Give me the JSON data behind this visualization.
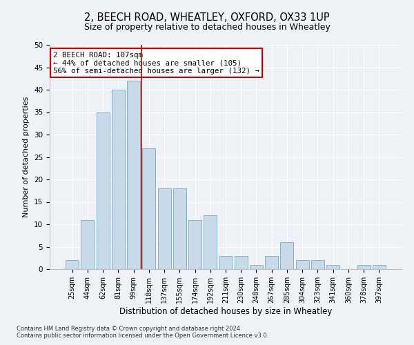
{
  "title_line1": "2, BEECH ROAD, WHEATLEY, OXFORD, OX33 1UP",
  "title_line2": "Size of property relative to detached houses in Wheatley",
  "xlabel": "Distribution of detached houses by size in Wheatley",
  "ylabel": "Number of detached properties",
  "bar_color": "#c8daea",
  "bar_edge_color": "#7aaabf",
  "categories": [
    "25sqm",
    "44sqm",
    "62sqm",
    "81sqm",
    "99sqm",
    "118sqm",
    "137sqm",
    "155sqm",
    "174sqm",
    "192sqm",
    "211sqm",
    "230sqm",
    "248sqm",
    "267sqm",
    "285sqm",
    "304sqm",
    "323sqm",
    "341sqm",
    "360sqm",
    "378sqm",
    "397sqm"
  ],
  "values": [
    2,
    11,
    35,
    40,
    42,
    27,
    18,
    18,
    11,
    12,
    3,
    3,
    1,
    3,
    6,
    2,
    2,
    1,
    0,
    1,
    1
  ],
  "vline_x": 4.5,
  "vline_color": "#cc0000",
  "ylim": [
    0,
    50
  ],
  "yticks": [
    0,
    5,
    10,
    15,
    20,
    25,
    30,
    35,
    40,
    45,
    50
  ],
  "annotation_title": "2 BEECH ROAD: 107sqm",
  "annotation_line1": "← 44% of detached houses are smaller (105)",
  "annotation_line2": "56% of semi-detached houses are larger (132) →",
  "annotation_box_color": "#ffffff",
  "annotation_box_edge": "#cc0000",
  "footnote1": "Contains HM Land Registry data © Crown copyright and database right 2024.",
  "footnote2": "Contains public sector information licensed under the Open Government Licence v3.0.",
  "background_color": "#eef2f7",
  "plot_background": "#eef2f7",
  "grid_color": "#ffffff",
  "title1_fontsize": 10.5,
  "title2_fontsize": 9,
  "ylabel_fontsize": 8,
  "xlabel_fontsize": 8.5,
  "tick_fontsize": 7,
  "annot_fontsize": 7.8,
  "footnote_fontsize": 6
}
